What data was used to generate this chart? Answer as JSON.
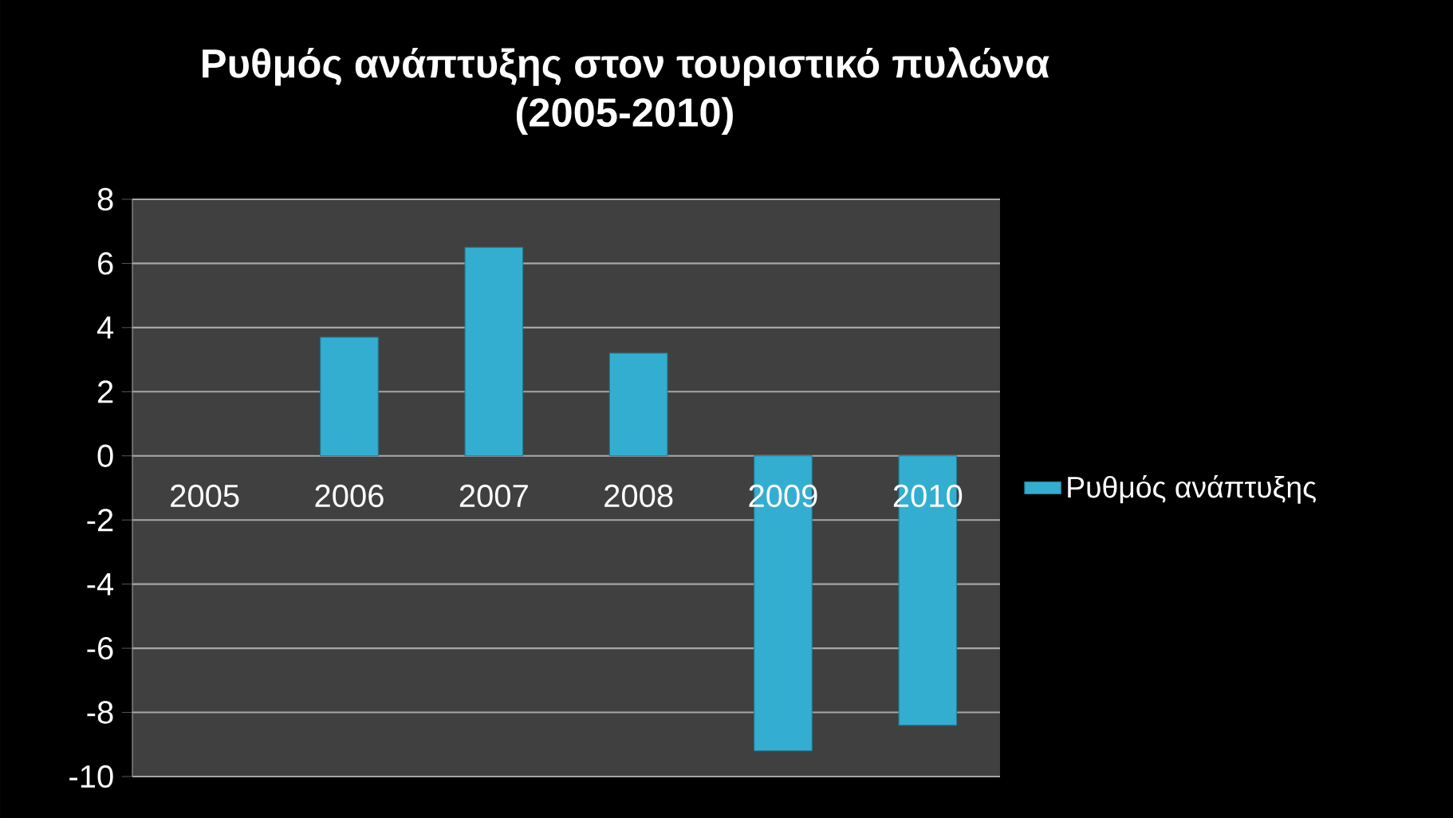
{
  "chart_data": {
    "type": "bar",
    "title": "Ρυθμός ανάπτυξης  στον τουριστικό πυλώνα\n(2005-2010)",
    "categories": [
      "2005",
      "2006",
      "2007",
      "2008",
      "2009",
      "2010"
    ],
    "series": [
      {
        "name": "Ρυθμός ανάπτυξης",
        "color": "#34aed0",
        "values": [
          null,
          3.7,
          6.5,
          3.2,
          -9.2,
          -8.4
        ]
      }
    ],
    "ylim": [
      -10,
      8
    ],
    "yticks": [
      -10,
      -8,
      -6,
      -4,
      -2,
      0,
      2,
      4,
      6,
      8
    ],
    "grid": "y",
    "legend": "right"
  }
}
